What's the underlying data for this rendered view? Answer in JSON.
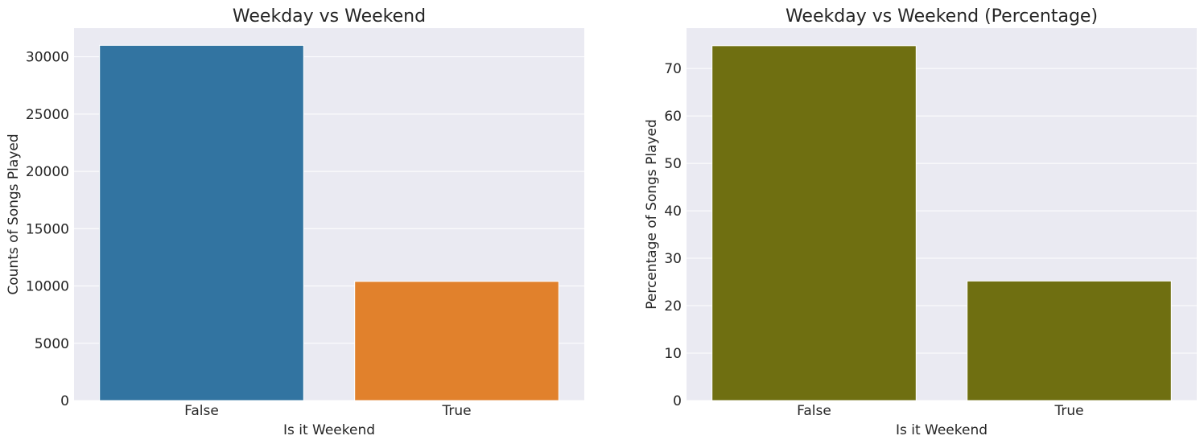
{
  "chart_data": [
    {
      "type": "bar",
      "title": "Weekday vs Weekend",
      "xlabel": "Is it Weekend",
      "ylabel": "Counts of Songs Played",
      "categories": [
        "False",
        "True"
      ],
      "values": [
        31000,
        10400
      ],
      "colors": [
        "#3274a1",
        "#e1812c"
      ],
      "ylim": [
        0,
        32500
      ],
      "yticks": [
        0,
        5000,
        10000,
        15000,
        20000,
        25000,
        30000
      ],
      "grid": true,
      "background": "#eaeaf2"
    },
    {
      "type": "bar",
      "title": "Weekday vs Weekend (Percentage)",
      "xlabel": "Is it Weekend",
      "ylabel": "Percentage of Songs Played",
      "categories": [
        "False",
        "True"
      ],
      "values": [
        74.8,
        25.2
      ],
      "colors": [
        "#6f6f11",
        "#6f6f11"
      ],
      "ylim": [
        0,
        78.5
      ],
      "yticks": [
        0,
        10,
        20,
        30,
        40,
        50,
        60,
        70
      ],
      "grid": true,
      "background": "#eaeaf2"
    }
  ]
}
